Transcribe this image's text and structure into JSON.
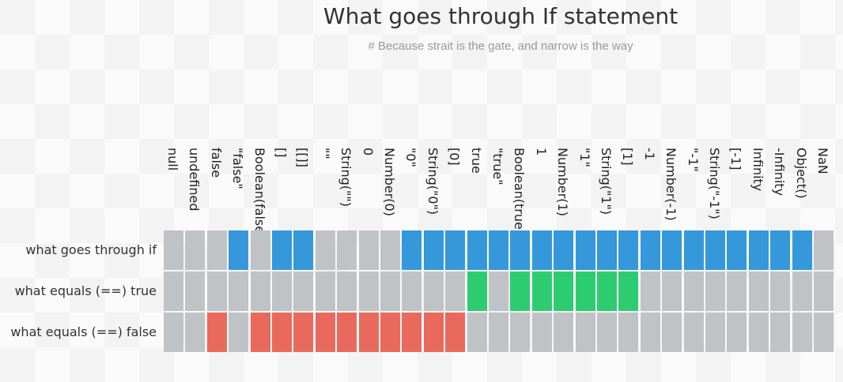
{
  "header": {
    "title": "What goes through If statement",
    "subtitle": "# Because strait is the gate, and narrow is the way"
  },
  "colors": {
    "neutral": "#c0c3c6",
    "through_if": "#3498db",
    "equals_true": "#2ecc71",
    "equals_false": "#e96a5c",
    "background": "#f6f6f6"
  },
  "chart_data": {
    "type": "heatmap",
    "title": "What goes through If statement",
    "subtitle": "# Because strait is the gate, and narrow is the way",
    "columns": [
      "null",
      "undefined",
      "false",
      "\"false\"",
      "Boolean(false)",
      "[]",
      "[[]]",
      "\"\"",
      "String(\"\")",
      "0",
      "Number(0)",
      "\"0\"",
      "String(\"0\")",
      "[0]",
      "true",
      "\"true\"",
      "Boolean(true)",
      "1",
      "Number(1)",
      "\"1\"",
      "String(\"1\")",
      "[1]",
      "-1",
      "Number(-1)",
      "\"-1\"",
      "String(\"-1\")",
      "[-1]",
      "Infinity",
      "-Infinity",
      "Object()",
      "NaN"
    ],
    "rows": [
      {
        "label": "what goes through if",
        "color": "#3498db",
        "values": [
          0,
          0,
          0,
          1,
          0,
          1,
          1,
          0,
          0,
          0,
          0,
          1,
          1,
          1,
          1,
          1,
          1,
          1,
          1,
          1,
          1,
          1,
          1,
          1,
          1,
          1,
          1,
          1,
          1,
          1,
          0
        ]
      },
      {
        "label": "what equals (==) true",
        "color": "#2ecc71",
        "values": [
          0,
          0,
          0,
          0,
          0,
          0,
          0,
          0,
          0,
          0,
          0,
          0,
          0,
          0,
          1,
          0,
          1,
          1,
          1,
          1,
          1,
          1,
          0,
          0,
          0,
          0,
          0,
          0,
          0,
          0,
          0
        ]
      },
      {
        "label": "what equals (==) false",
        "color": "#e96a5c",
        "values": [
          0,
          0,
          1,
          0,
          1,
          1,
          1,
          1,
          1,
          1,
          1,
          1,
          1,
          1,
          0,
          0,
          0,
          0,
          0,
          0,
          0,
          0,
          0,
          0,
          0,
          0,
          0,
          0,
          0,
          0,
          0
        ]
      }
    ]
  }
}
